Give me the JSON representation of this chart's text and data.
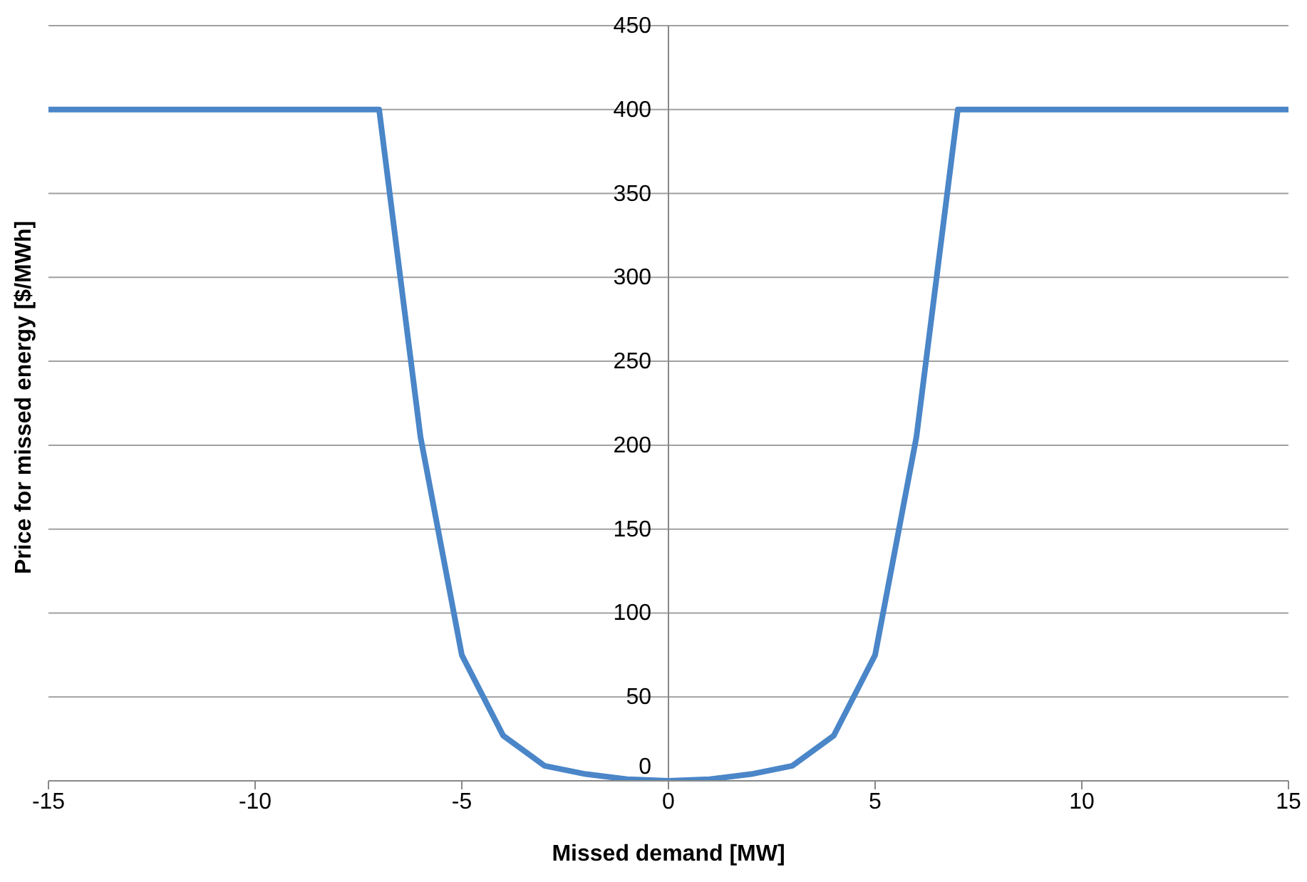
{
  "chart_data": {
    "type": "line",
    "xlabel": "Missed demand [MW]",
    "ylabel": "Price for missed energy [$/MWh]",
    "x": [
      -15,
      -7,
      -6,
      -5,
      -4,
      -3,
      -2,
      -1,
      0,
      1,
      2,
      3,
      4,
      5,
      6,
      7,
      15
    ],
    "series": [
      {
        "color": "#4a86c8",
        "values": [
          400,
          400,
          205,
          75,
          27,
          9,
          4,
          1,
          0,
          1,
          4,
          9,
          27,
          75,
          205,
          400,
          400
        ]
      }
    ],
    "xlim": [
      -15,
      15
    ],
    "xticks": [
      -15,
      -10,
      -5,
      0,
      5,
      10,
      15
    ],
    "ylim": [
      0,
      450
    ],
    "yticks": [
      0,
      50,
      100,
      150,
      200,
      250,
      300,
      350,
      400,
      450
    ],
    "grid": "y",
    "legend": false,
    "marker": "none",
    "line_style": "solid"
  }
}
